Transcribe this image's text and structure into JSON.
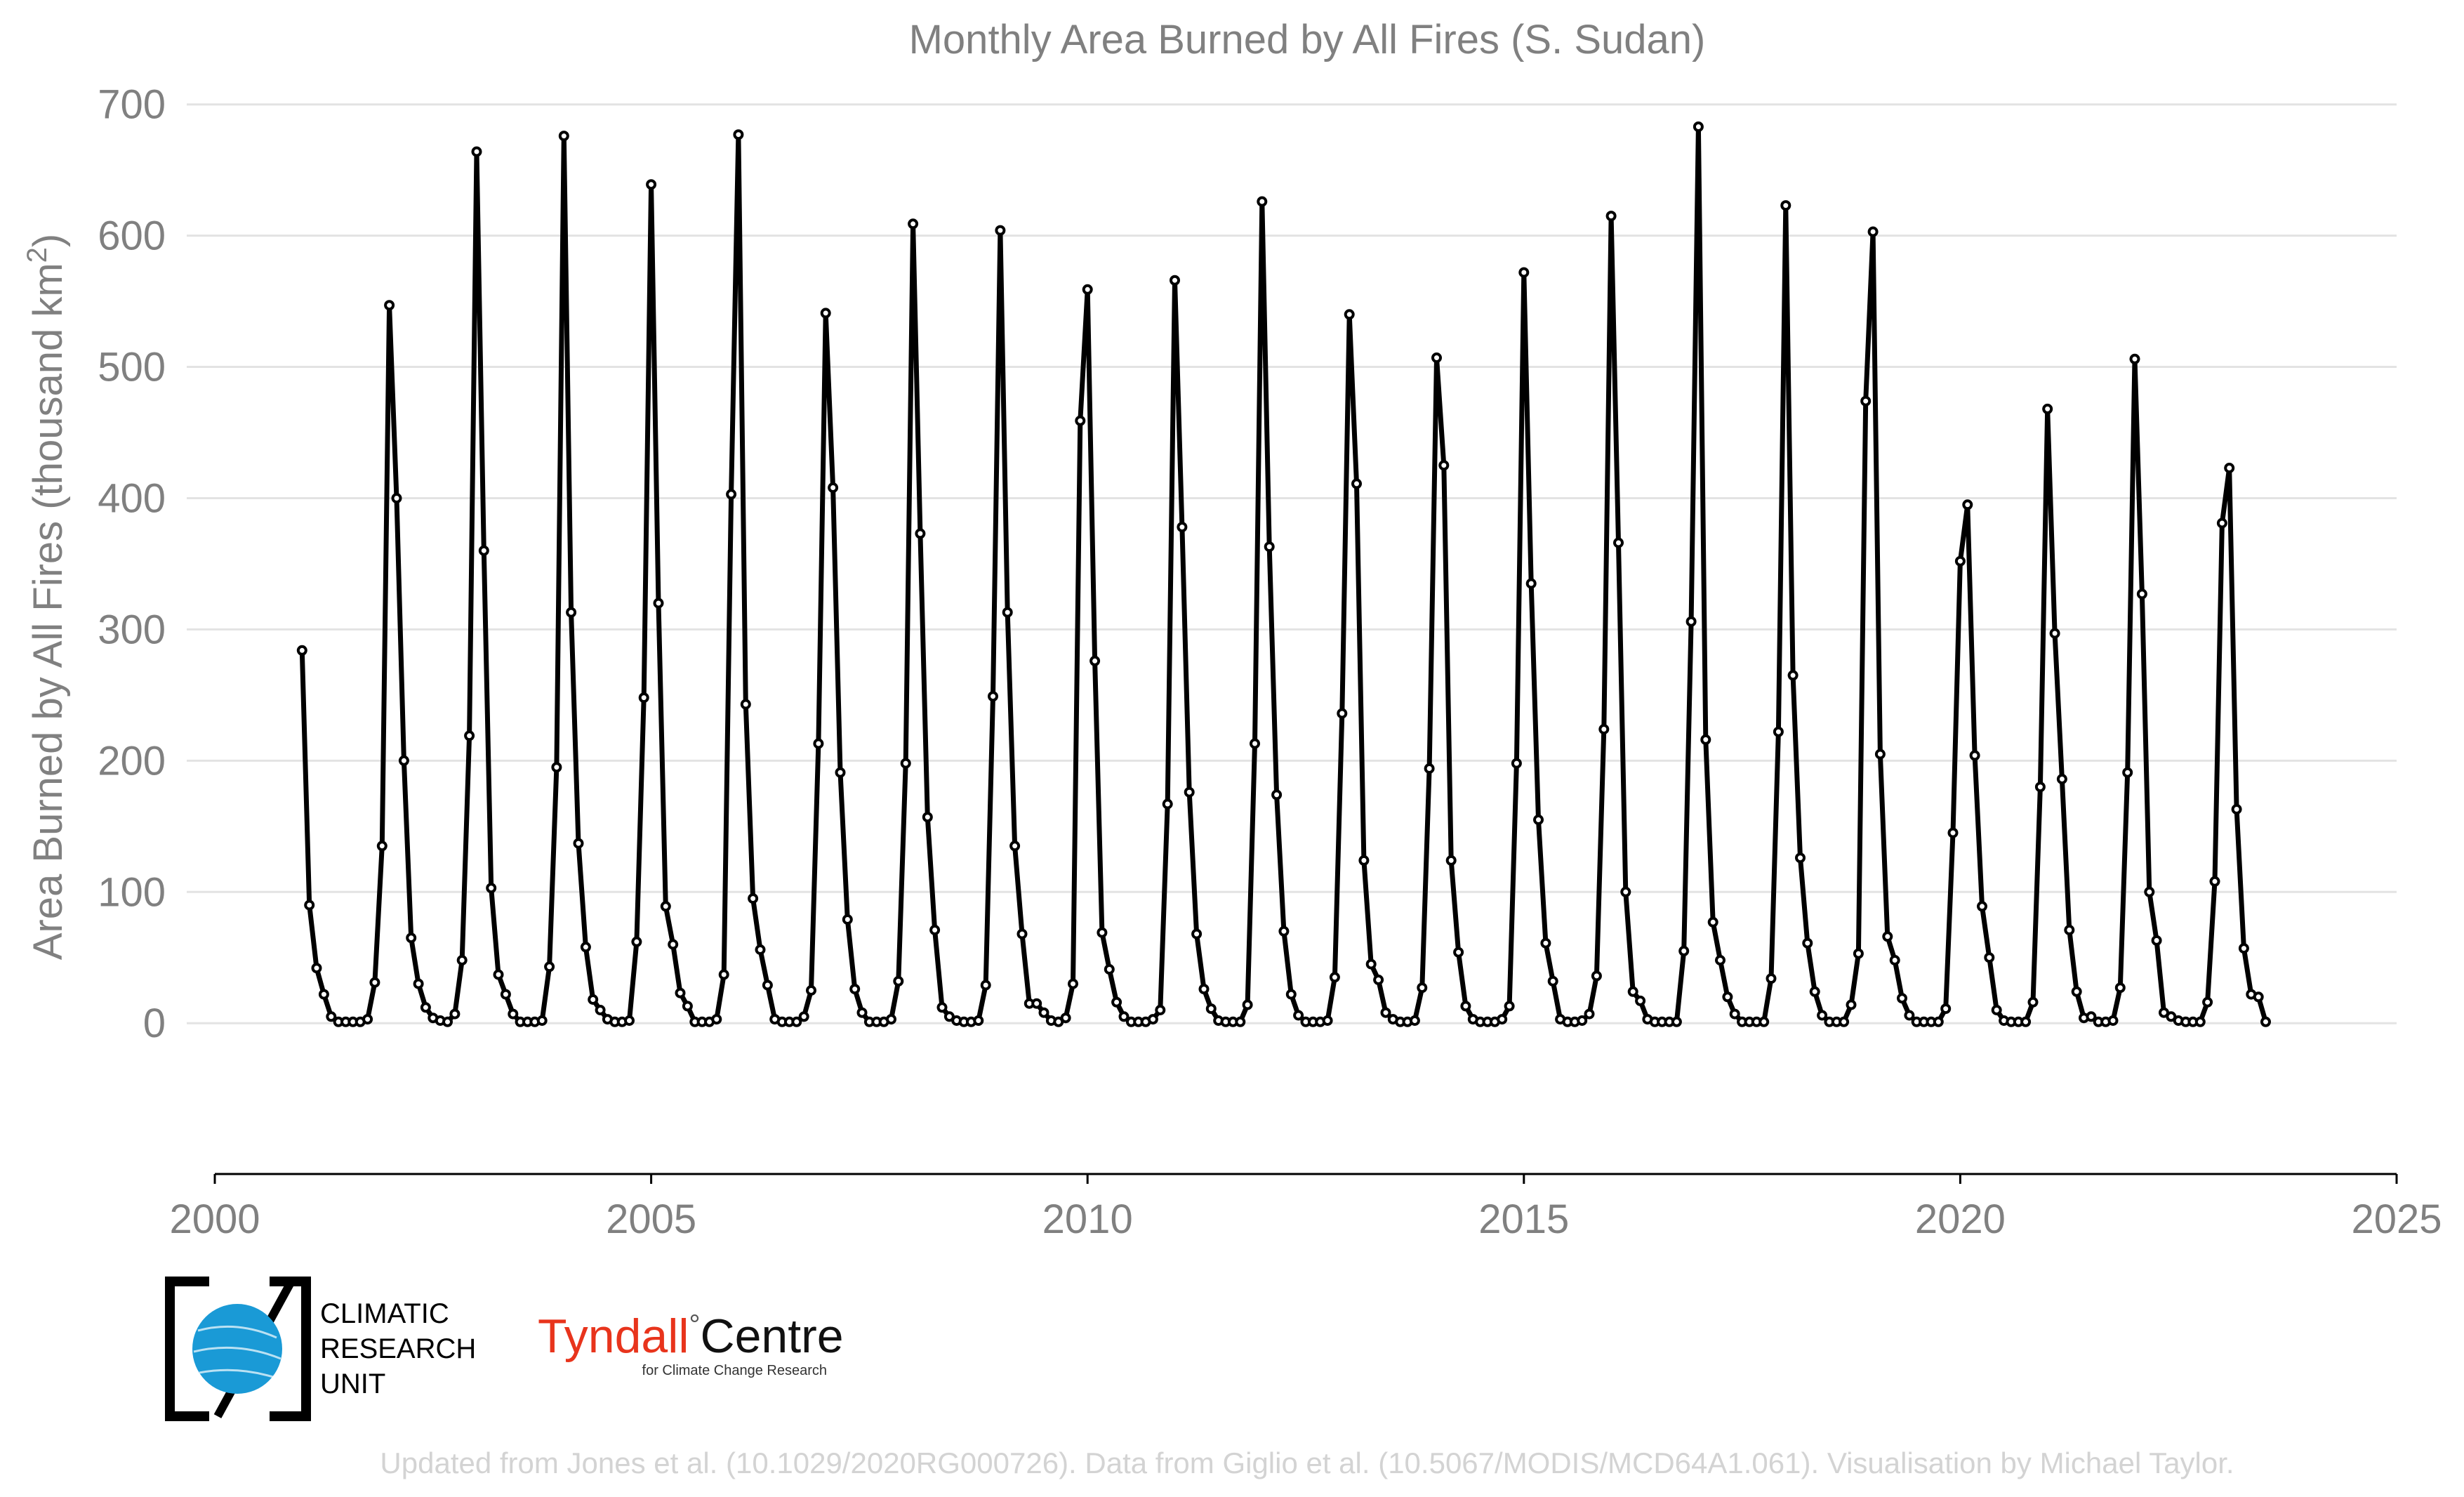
{
  "chart_data": {
    "type": "line",
    "title": "Monthly Area Burned by All Fires (S. Sudan)",
    "ylabel": "Area Burned by All Fires (thousand km²)",
    "xlabel": "",
    "xlim": [
      2000,
      2025
    ],
    "ylim": [
      -55,
      710
    ],
    "x_ticks": [
      "2000",
      "2005",
      "2010",
      "2015",
      "2020",
      "2025"
    ],
    "y_ticks": [
      "0",
      "100",
      "200",
      "300",
      "400",
      "500",
      "600",
      "700"
    ],
    "grid": "horizontal",
    "legend": "none",
    "x_start": "2001-01",
    "x_step_months": 1,
    "values": [
      284,
      90,
      42,
      22,
      5,
      1,
      1,
      1,
      1,
      3,
      31,
      135,
      547,
      400,
      200,
      65,
      30,
      12,
      4,
      2,
      1,
      7,
      48,
      219,
      664,
      360,
      103,
      37,
      22,
      7,
      1,
      1,
      1,
      2,
      43,
      195,
      676,
      313,
      137,
      58,
      18,
      10,
      3,
      1,
      1,
      2,
      62,
      248,
      639,
      320,
      89,
      60,
      23,
      13,
      1,
      1,
      1,
      3,
      37,
      403,
      677,
      243,
      95,
      56,
      29,
      3,
      1,
      1,
      1,
      5,
      25,
      213,
      541,
      408,
      191,
      79,
      26,
      8,
      1,
      1,
      1,
      3,
      32,
      198,
      609,
      373,
      157,
      71,
      12,
      5,
      2,
      1,
      1,
      2,
      29,
      249,
      604,
      313,
      135,
      68,
      15,
      15,
      8,
      2,
      1,
      4,
      30,
      459,
      559,
      276,
      69,
      41,
      16,
      5,
      1,
      1,
      1,
      3,
      10,
      167,
      566,
      378,
      176,
      68,
      26,
      11,
      2,
      1,
      1,
      1,
      14,
      213,
      626,
      363,
      174,
      70,
      22,
      6,
      1,
      1,
      1,
      2,
      35,
      236,
      540,
      411,
      124,
      45,
      33,
      8,
      3,
      1,
      1,
      2,
      27,
      194,
      507,
      425,
      124,
      54,
      13,
      3,
      1,
      1,
      1,
      3,
      13,
      198,
      572,
      335,
      155,
      61,
      32,
      3,
      1,
      1,
      2,
      7,
      36,
      224,
      615,
      366,
      100,
      24,
      17,
      3,
      1,
      1,
      1,
      1,
      55,
      306,
      683,
      216,
      77,
      48,
      20,
      7,
      1,
      1,
      1,
      1,
      34,
      222,
      623,
      265,
      126,
      61,
      24,
      6,
      1,
      1,
      1,
      14,
      53,
      474,
      603,
      205,
      66,
      48,
      19,
      6,
      1,
      1,
      1,
      1,
      11,
      145,
      352,
      395,
      204,
      89,
      50,
      10,
      2,
      1,
      1,
      1,
      16,
      180,
      468,
      297,
      186,
      71,
      24,
      4,
      5,
      1,
      1,
      2,
      27,
      191,
      506,
      327,
      100,
      63,
      8,
      5,
      2,
      1,
      1,
      1,
      16,
      108,
      381,
      423,
      163,
      57,
      22,
      20,
      1
    ]
  },
  "footer": {
    "cru_line1": "CLIMATIC",
    "cru_line2": "RESEARCH",
    "cru_line3": "UNIT",
    "tyndall_name": "Tyndall",
    "tyndall_degree": "°",
    "tyndall_centre": "Centre",
    "tyndall_sub": "for Climate Change Research",
    "credit": "Updated from Jones et al. (10.1029/2020RG000726). Data from Giglio et al. (10.5067/MODIS/MCD64A1.061). Visualisation by Michael Taylor."
  },
  "colors": {
    "series": "#000000",
    "axis_text": "#808080",
    "grid": "#e3e3e3",
    "credit": "#d3d3d3",
    "tyndall_red": "#e8341c",
    "cru_globe": "#1a9ad6"
  }
}
